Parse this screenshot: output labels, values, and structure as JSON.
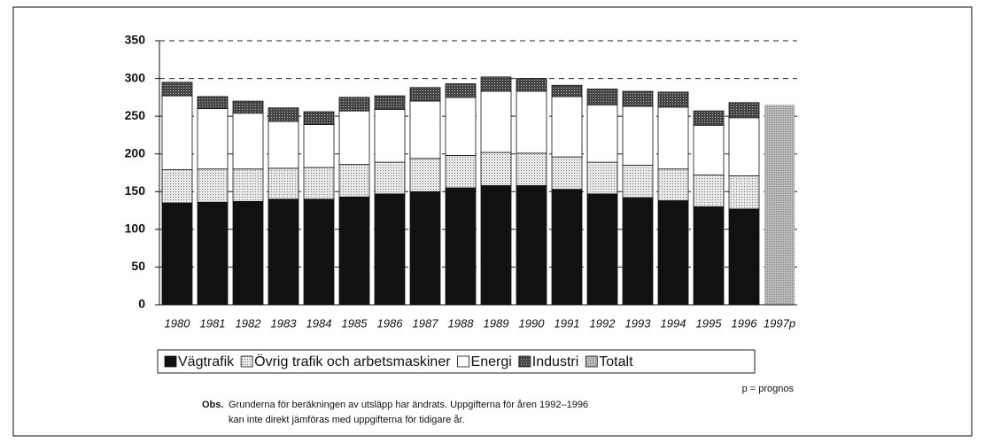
{
  "chart_data": {
    "type": "stacked_bar",
    "categories": [
      "1980",
      "1981",
      "1982",
      "1983",
      "1984",
      "1985",
      "1986",
      "1987",
      "1988",
      "1989",
      "1990",
      "1991",
      "1992",
      "1993",
      "1994",
      "1995",
      "1996",
      "1997p"
    ],
    "series": [
      {
        "name": "Vägtrafik",
        "color": "#111111",
        "values": [
          135,
          136,
          137,
          140,
          140,
          143,
          147,
          150,
          155,
          158,
          158,
          153,
          147,
          142,
          138,
          130,
          127,
          null
        ]
      },
      {
        "name": "Övrig trafik och arbetsmaskiner",
        "color": "#cfcfcf",
        "pattern": "dots",
        "values": [
          44,
          44,
          43,
          41,
          42,
          43,
          42,
          44,
          43,
          44,
          43,
          43,
          42,
          43,
          42,
          42,
          44,
          null
        ]
      },
      {
        "name": "Energi",
        "color": "#ffffff",
        "values": [
          98,
          80,
          74,
          62,
          57,
          71,
          70,
          76,
          77,
          81,
          82,
          80,
          76,
          78,
          82,
          66,
          77,
          null
        ]
      },
      {
        "name": "Industri",
        "color": "#555555",
        "pattern": "dots",
        "values": [
          18,
          16,
          16,
          18,
          17,
          18,
          18,
          18,
          18,
          19,
          17,
          15,
          21,
          20,
          20,
          19,
          20,
          null
        ]
      },
      {
        "name": "Totalt",
        "color": "#a8a8a8",
        "pattern": "dots",
        "values": [
          null,
          null,
          null,
          null,
          null,
          null,
          null,
          null,
          null,
          null,
          null,
          null,
          null,
          null,
          null,
          null,
          null,
          265
        ]
      }
    ],
    "ylim": [
      0,
      350
    ],
    "yticks": [
      0,
      50,
      100,
      150,
      200,
      250,
      300,
      350
    ],
    "grid": true,
    "footnote": "p = prognos",
    "note": {
      "label": "Obs.",
      "lines": [
        "Grunderna för beräkningen av utsläpp har ändrats. Uppgifterna för åren 1992–1996",
        "kan inte direkt jämföras med uppgifterna för tidigare år."
      ]
    }
  }
}
